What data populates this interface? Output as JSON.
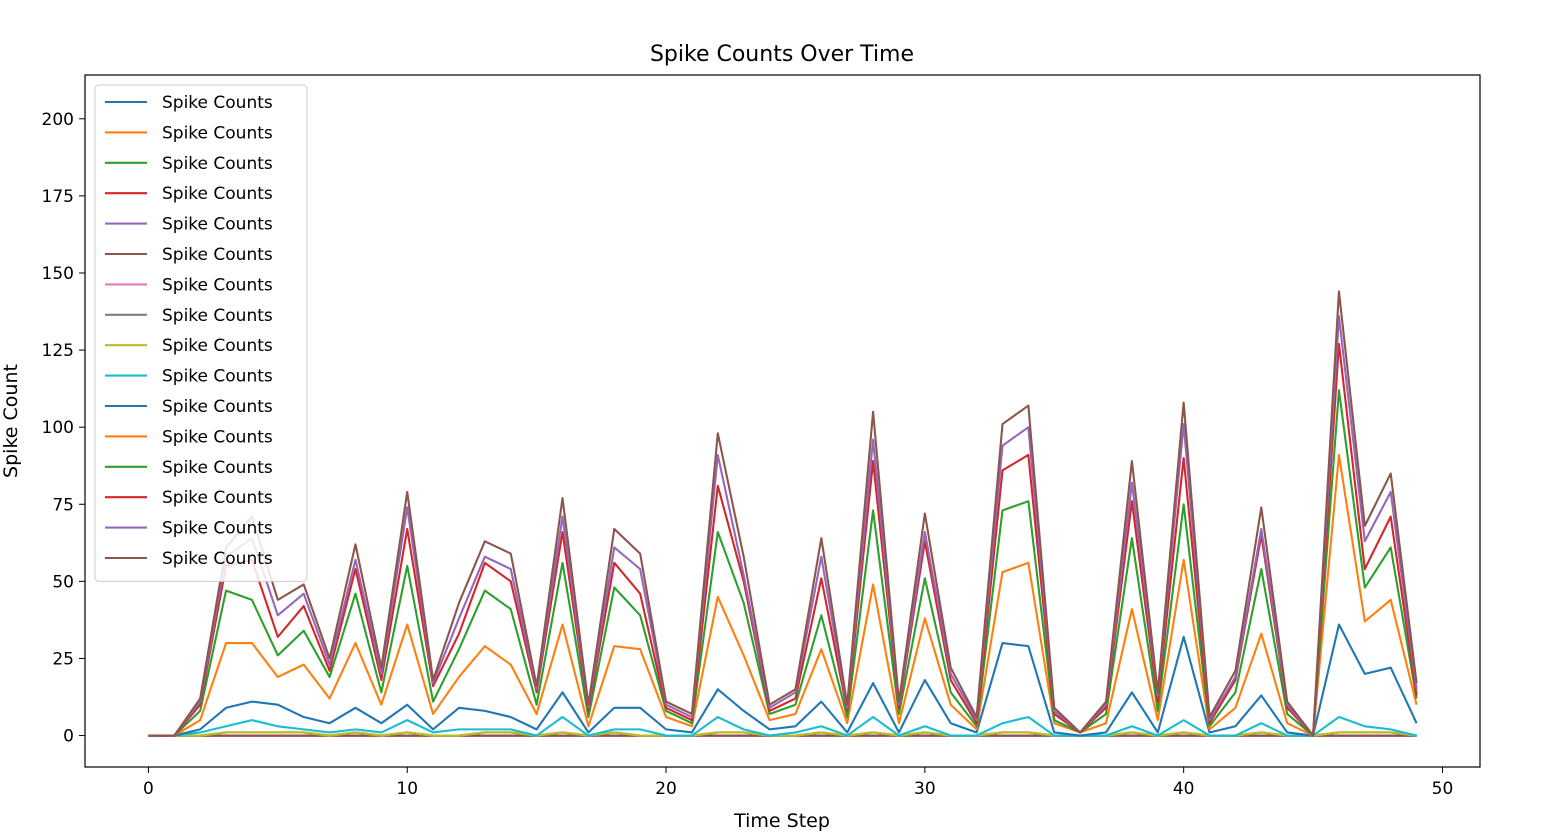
{
  "chart_data": {
    "type": "line",
    "title": "Spike Counts Over Time",
    "xlabel": "Time Step",
    "ylabel": "Spike Count",
    "xlim": [
      -2.45,
      51.45
    ],
    "ylim": [
      -10.2,
      214.2
    ],
    "xticks": [
      0,
      10,
      20,
      30,
      40,
      50
    ],
    "yticks": [
      0,
      25,
      50,
      75,
      100,
      125,
      150,
      175,
      200
    ],
    "grid": false,
    "legend_position": "upper left",
    "x": [
      0,
      1,
      2,
      3,
      4,
      5,
      6,
      7,
      8,
      9,
      10,
      11,
      12,
      13,
      14,
      15,
      16,
      17,
      18,
      19,
      20,
      21,
      22,
      23,
      24,
      25,
      26,
      27,
      28,
      29,
      30,
      31,
      32,
      33,
      34,
      35,
      36,
      37,
      38,
      39,
      40,
      41,
      42,
      43,
      44,
      45,
      46,
      47,
      48,
      49
    ],
    "series": [
      {
        "name": "Spike Counts",
        "color": "#1f77b4",
        "values": [
          0,
          0,
          0,
          0,
          0,
          0,
          0,
          0,
          0,
          0,
          0,
          0,
          0,
          0,
          0,
          0,
          0,
          0,
          0,
          0,
          0,
          0,
          0,
          0,
          0,
          0,
          0,
          0,
          0,
          0,
          0,
          0,
          0,
          0,
          0,
          0,
          0,
          0,
          0,
          0,
          0,
          0,
          0,
          0,
          0,
          0,
          0,
          0,
          0,
          0
        ]
      },
      {
        "name": "Spike Counts",
        "color": "#ff7f0e",
        "values": [
          0,
          0,
          0,
          0,
          0,
          0,
          0,
          0,
          0,
          0,
          0,
          0,
          0,
          0,
          0,
          0,
          0,
          0,
          0,
          0,
          0,
          0,
          0,
          0,
          0,
          0,
          0,
          0,
          0,
          0,
          0,
          0,
          0,
          0,
          0,
          0,
          0,
          0,
          0,
          0,
          0,
          0,
          0,
          0,
          0,
          0,
          0,
          0,
          0,
          0
        ]
      },
      {
        "name": "Spike Counts",
        "color": "#2ca02c",
        "values": [
          0,
          0,
          0,
          0,
          0,
          0,
          0,
          0,
          0,
          0,
          0,
          0,
          0,
          0,
          0,
          0,
          0,
          0,
          0,
          0,
          0,
          0,
          0,
          0,
          0,
          0,
          0,
          0,
          0,
          0,
          0,
          0,
          0,
          0,
          0,
          0,
          0,
          0,
          0,
          0,
          0,
          0,
          0,
          0,
          0,
          0,
          0,
          0,
          0,
          0
        ]
      },
      {
        "name": "Spike Counts",
        "color": "#d62728",
        "values": [
          0,
          0,
          0,
          0,
          0,
          0,
          0,
          0,
          0,
          0,
          0,
          0,
          0,
          0,
          0,
          0,
          0,
          0,
          0,
          0,
          0,
          0,
          0,
          0,
          0,
          0,
          0,
          0,
          0,
          0,
          0,
          0,
          0,
          0,
          0,
          0,
          0,
          0,
          0,
          0,
          0,
          0,
          0,
          0,
          0,
          0,
          0,
          0,
          0,
          0
        ]
      },
      {
        "name": "Spike Counts",
        "color": "#9467bd",
        "values": [
          0,
          0,
          0,
          0,
          0,
          0,
          0,
          0,
          0,
          0,
          0,
          0,
          0,
          0,
          0,
          0,
          0,
          0,
          0,
          0,
          0,
          0,
          0,
          0,
          0,
          0,
          0,
          0,
          0,
          0,
          0,
          0,
          0,
          0,
          0,
          0,
          0,
          0,
          0,
          0,
          0,
          0,
          0,
          0,
          0,
          0,
          0,
          0,
          0,
          0
        ]
      },
      {
        "name": "Spike Counts",
        "color": "#8c564b",
        "values": [
          0,
          0,
          0,
          0,
          0,
          0,
          0,
          0,
          0,
          0,
          0,
          0,
          0,
          0,
          0,
          0,
          0,
          0,
          0,
          0,
          0,
          0,
          0,
          0,
          0,
          0,
          0,
          0,
          0,
          0,
          0,
          0,
          0,
          0,
          0,
          0,
          0,
          0,
          0,
          0,
          0,
          0,
          0,
          0,
          0,
          0,
          0,
          0,
          0,
          0
        ]
      },
      {
        "name": "Spike Counts",
        "color": "#e377c2",
        "values": [
          0,
          0,
          0,
          1,
          1,
          1,
          1,
          0,
          1,
          0,
          1,
          0,
          0,
          1,
          1,
          0,
          1,
          0,
          1,
          0,
          0,
          0,
          1,
          1,
          0,
          0,
          1,
          0,
          1,
          0,
          1,
          0,
          0,
          1,
          1,
          0,
          0,
          0,
          1,
          0,
          1,
          0,
          0,
          1,
          0,
          0,
          1,
          1,
          1,
          0
        ]
      },
      {
        "name": "Spike Counts",
        "color": "#7f7f7f",
        "values": [
          0,
          0,
          0,
          0,
          0,
          0,
          0,
          0,
          0,
          0,
          0,
          0,
          0,
          0,
          0,
          0,
          0,
          0,
          0,
          0,
          0,
          0,
          0,
          0,
          0,
          0,
          0,
          0,
          0,
          0,
          0,
          0,
          0,
          0,
          0,
          0,
          0,
          0,
          0,
          0,
          0,
          0,
          0,
          0,
          0,
          0,
          0,
          0,
          0,
          0
        ]
      },
      {
        "name": "Spike Counts",
        "color": "#bcbd22",
        "values": [
          0,
          0,
          0,
          0,
          0,
          0,
          0,
          0,
          0,
          0,
          0,
          0,
          0,
          0,
          0,
          0,
          0,
          0,
          0,
          0,
          0,
          0,
          0,
          0,
          0,
          0,
          0,
          0,
          0,
          0,
          0,
          0,
          0,
          0,
          0,
          0,
          0,
          0,
          0,
          0,
          0,
          0,
          0,
          0,
          0,
          0,
          0,
          0,
          0,
          0
        ]
      },
      {
        "name": "Spike Counts",
        "color": "#17becf",
        "values": [
          0,
          0,
          1,
          2,
          4,
          2,
          1,
          1,
          1,
          1,
          4,
          1,
          2,
          1,
          1,
          0,
          5,
          0,
          1,
          2,
          0,
          0,
          5,
          1,
          0,
          1,
          2,
          0,
          5,
          0,
          2,
          0,
          0,
          3,
          5,
          0,
          0,
          0,
          2,
          0,
          4,
          0,
          0,
          3,
          0,
          0,
          5,
          2,
          1,
          0
        ]
      },
      {
        "name": "Spike Counts",
        "color": "#1f77b4",
        "values": [
          0,
          0,
          1,
          6,
          6,
          7,
          4,
          3,
          7,
          3,
          5,
          1,
          7,
          6,
          4,
          2,
          8,
          1,
          7,
          7,
          2,
          1,
          9,
          6,
          2,
          2,
          8,
          1,
          11,
          1,
          15,
          4,
          1,
          26,
          23,
          1,
          0,
          1,
          11,
          1,
          27,
          1,
          3,
          9,
          1,
          0,
          30,
          17,
          20,
          4
        ]
      },
      {
        "name": "Spike Counts",
        "color": "#ff7f0e",
        "values": [
          0,
          0,
          3,
          21,
          19,
          9,
          17,
          8,
          21,
          6,
          26,
          5,
          10,
          21,
          17,
          5,
          22,
          2,
          20,
          19,
          4,
          2,
          30,
          18,
          3,
          4,
          17,
          3,
          32,
          3,
          20,
          6,
          1,
          23,
          27,
          3,
          1,
          3,
          27,
          4,
          25,
          1,
          6,
          20,
          3,
          0,
          55,
          17,
          22,
          6
        ]
      },
      {
        "name": "Spike Counts",
        "color": "#2ca02c",
        "values": [
          0,
          0,
          3,
          17,
          14,
          7,
          11,
          7,
          16,
          4,
          19,
          4,
          9,
          18,
          18,
          3,
          20,
          3,
          19,
          11,
          2,
          1,
          21,
          17,
          2,
          3,
          11,
          2,
          24,
          3,
          13,
          4,
          1,
          20,
          20,
          1,
          0,
          3,
          23,
          3,
          18,
          1,
          5,
          21,
          3,
          0,
          21,
          11,
          17,
          2
        ]
      },
      {
        "name": "Spike Counts",
        "color": "#d62728",
        "values": [
          0,
          0,
          2,
          8,
          13,
          6,
          8,
          2,
          8,
          4,
          12,
          5,
          5,
          9,
          9,
          4,
          10,
          2,
          8,
          7,
          1,
          1,
          15,
          7,
          1,
          2,
          12,
          2,
          16,
          2,
          12,
          4,
          1,
          13,
          15,
          2,
          0,
          2,
          12,
          3,
          15,
          1,
          4,
          11,
          2,
          0,
          15,
          6,
          10,
          1
        ]
      },
      {
        "name": "Spike Counts",
        "color": "#9467bd",
        "values": [
          0,
          0,
          1,
          3,
          7,
          7,
          4,
          2,
          3,
          2,
          7,
          1,
          5,
          2,
          4,
          1,
          5,
          1,
          5,
          8,
          1,
          1,
          10,
          2,
          1,
          2,
          7,
          1,
          7,
          1,
          3,
          2,
          1,
          8,
          9,
          1,
          0,
          1,
          6,
          2,
          11,
          1,
          1,
          2,
          1,
          0,
          9,
          9,
          8,
          2
        ]
      },
      {
        "name": "Spike Counts",
        "color": "#8c564b",
        "values": [
          0,
          0,
          1,
          3,
          7,
          5,
          3,
          2,
          5,
          2,
          5,
          1,
          5,
          5,
          5,
          1,
          6,
          1,
          6,
          5,
          1,
          1,
          7,
          6,
          1,
          1,
          6,
          1,
          9,
          1,
          6,
          2,
          1,
          7,
          7,
          1,
          0,
          1,
          7,
          1,
          7,
          1,
          2,
          7,
          1,
          0,
          8,
          5,
          6,
          2
        ]
      }
    ],
    "annotations": []
  },
  "legend": {
    "entries": [
      "Spike Counts",
      "Spike Counts",
      "Spike Counts",
      "Spike Counts",
      "Spike Counts",
      "Spike Counts",
      "Spike Counts",
      "Spike Counts",
      "Spike Counts",
      "Spike Counts",
      "Spike Counts",
      "Spike Counts",
      "Spike Counts",
      "Spike Counts",
      "Spike Counts",
      "Spike Counts"
    ],
    "colors": [
      "#1f77b4",
      "#ff7f0e",
      "#2ca02c",
      "#d62728",
      "#9467bd",
      "#8c564b",
      "#e377c2",
      "#7f7f7f",
      "#bcbd22",
      "#17becf",
      "#1f77b4",
      "#ff7f0e",
      "#2ca02c",
      "#d62728",
      "#9467bd",
      "#8c564b"
    ]
  },
  "stacked_note": ""
}
